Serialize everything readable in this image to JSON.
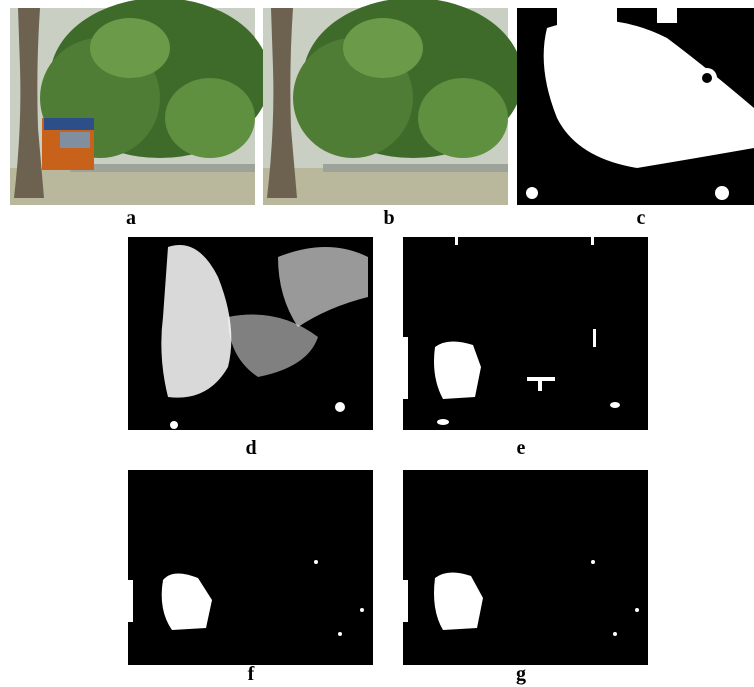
{
  "panels": [
    {
      "label": "a"
    },
    {
      "label": "b"
    },
    {
      "label": "c"
    },
    {
      "label": "d"
    },
    {
      "label": "e"
    },
    {
      "label": "f"
    },
    {
      "label": "g"
    }
  ]
}
